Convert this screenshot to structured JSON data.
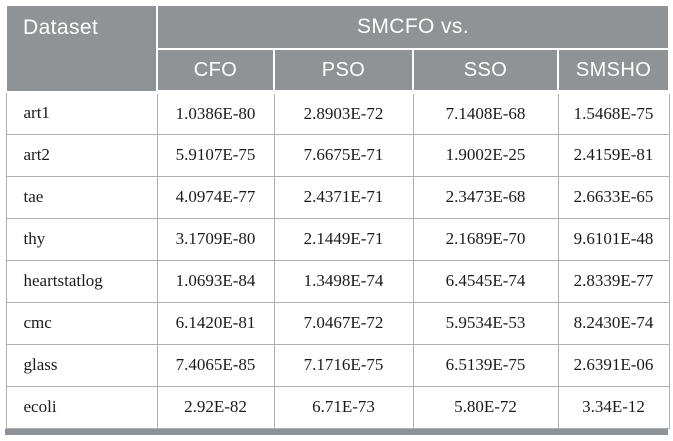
{
  "colors": {
    "header_bg": "#8f9396",
    "header_text": "#ffffff",
    "cell_border": "#b0b0b0",
    "body_text": "#1a1a1a"
  },
  "header": {
    "dataset_label": "Dataset",
    "group_label": "SMCFO vs.",
    "columns": [
      "CFO",
      "PSO",
      "SSO",
      "SMSHO"
    ]
  },
  "table": {
    "rows": [
      {
        "dataset": "art1",
        "values": [
          "1.0386E-80",
          "2.8903E-72",
          "7.1408E-68",
          "1.5468E-75"
        ]
      },
      {
        "dataset": "art2",
        "values": [
          "5.9107E-75",
          "7.6675E-71",
          "1.9002E-25",
          "2.4159E-81"
        ]
      },
      {
        "dataset": "tae",
        "values": [
          "4.0974E-77",
          "2.4371E-71",
          "2.3473E-68",
          "2.6633E-65"
        ]
      },
      {
        "dataset": "thy",
        "values": [
          "3.1709E-80",
          "2.1449E-71",
          "2.1689E-70",
          "9.6101E-48"
        ]
      },
      {
        "dataset": "heartstatlog",
        "values": [
          "1.0693E-84",
          "1.3498E-74",
          "6.4545E-74",
          "2.8339E-77"
        ]
      },
      {
        "dataset": "cmc",
        "values": [
          "6.1420E-81",
          "7.0467E-72",
          "5.9534E-53",
          "8.2430E-74"
        ]
      },
      {
        "dataset": "glass",
        "values": [
          "7.4065E-85",
          "7.1716E-75",
          "6.5139E-75",
          "2.6391E-06"
        ]
      },
      {
        "dataset": "ecoli",
        "values": [
          "2.92E-82",
          "6.71E-73",
          "5.80E-72",
          "3.34E-12"
        ]
      }
    ]
  }
}
